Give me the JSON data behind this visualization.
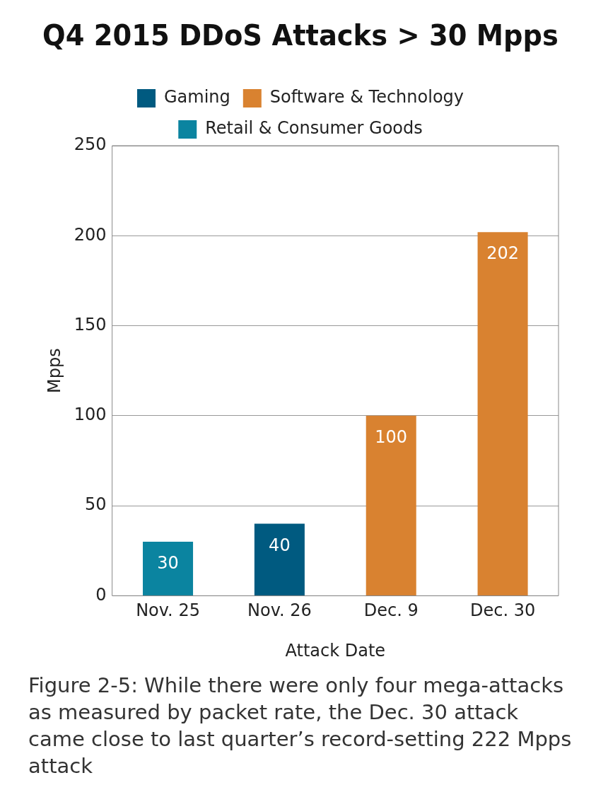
{
  "chart_data": {
    "type": "bar",
    "title": "Q4 2015 DDoS Attacks > 30 Mpps",
    "xlabel": "Attack Date",
    "ylabel": "Mpps",
    "categories": [
      "Nov. 25",
      "Nov. 26",
      "Dec. 9",
      "Dec. 30"
    ],
    "series": [
      {
        "name": "Gaming",
        "color": "#005a80",
        "values": [
          null,
          40,
          null,
          null
        ]
      },
      {
        "name": "Software & Technology",
        "color": "#d98230",
        "values": [
          null,
          null,
          100,
          202
        ]
      },
      {
        "name": "Retail & Consumer Goods",
        "color": "#0b84a0",
        "values": [
          30,
          null,
          null,
          null
        ]
      }
    ],
    "ylim": [
      0,
      250
    ],
    "yticks": [
      0,
      50,
      100,
      150,
      200,
      250
    ],
    "grid": "y",
    "legend": "top",
    "data_labels": true,
    "annotations": [
      "Figure 2-5: While there were only four mega-attacks as measured by packet rate, the Dec. 30 attack came close to last quarter’s record-setting 222 Mpps attack"
    ]
  }
}
